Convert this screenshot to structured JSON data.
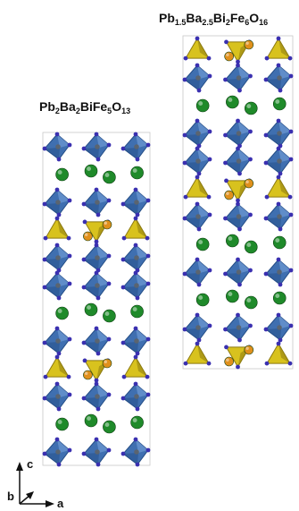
{
  "structures": [
    {
      "formula_parts": [
        {
          "t": "Pb"
        },
        {
          "t": "2",
          "sub": true
        },
        {
          "t": "Ba"
        },
        {
          "t": "2",
          "sub": true
        },
        {
          "t": "BiFe"
        },
        {
          "t": "5",
          "sub": true
        },
        {
          "t": "O"
        },
        {
          "t": "13",
          "sub": true
        }
      ],
      "layers": [
        "fe_oct",
        "ba_row",
        "fe_oct",
        "pb_tet",
        "fe_oct",
        "fe_oct",
        "ba_row",
        "fe_oct",
        "pb_tet",
        "fe_oct",
        "ba_row",
        "fe_oct"
      ]
    },
    {
      "formula_parts": [
        {
          "t": "Pb"
        },
        {
          "t": "1.5",
          "sub": true
        },
        {
          "t": "Ba"
        },
        {
          "t": "2.5",
          "sub": true
        },
        {
          "t": "Bi"
        },
        {
          "t": "2",
          "sub": true
        },
        {
          "t": "Fe"
        },
        {
          "t": "6",
          "sub": true
        },
        {
          "t": "O"
        },
        {
          "t": "16",
          "sub": true
        }
      ],
      "layers": [
        "pb_tet",
        "fe_oct",
        "ba_row",
        "fe_oct",
        "fe_oct",
        "pb_tet",
        "fe_oct",
        "ba_row",
        "fe_oct",
        "ba_row",
        "fe_oct",
        "pb_tet"
      ]
    }
  ],
  "axes": {
    "c": "c",
    "b": "b",
    "a": "a"
  },
  "colors": {
    "fe_octahedron": "#3f6fb0",
    "fe_octahedron_dark": "#244d86",
    "pb_tetrahedron": "#d8c21e",
    "pb_tetrahedron_dark": "#8c7a10",
    "ba_atom": "#1f8a2a",
    "pb_atom": "#e0901c",
    "oxygen_atom": "#3a30b0"
  }
}
